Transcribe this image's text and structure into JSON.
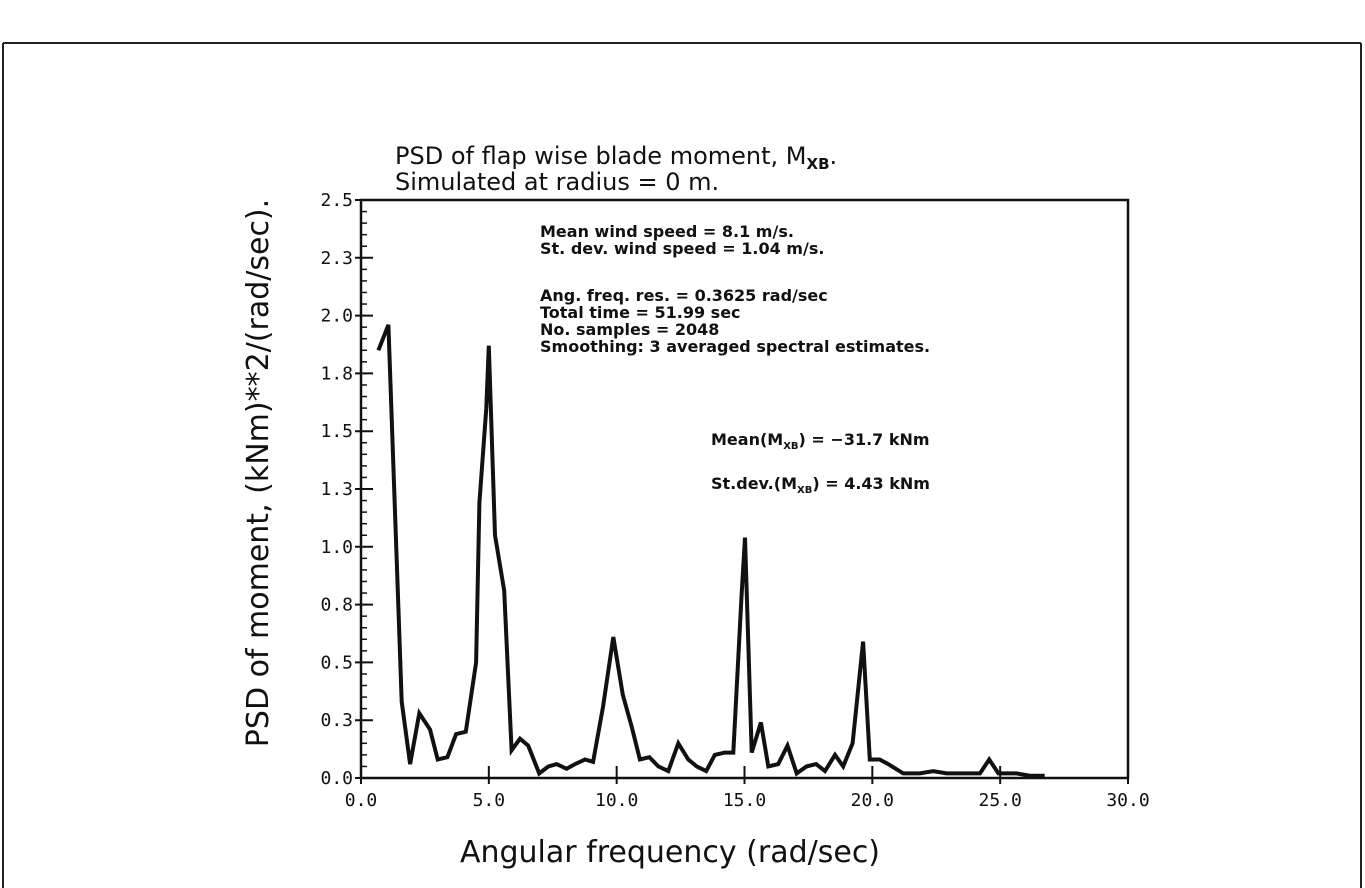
{
  "chart_data": {
    "type": "line",
    "title": [
      "PSD of flap wise blade moment, M",
      "Simulated at radius = 0 m."
    ],
    "title_subscript": "XB",
    "xlabel": "Angular frequency (rad/sec)",
    "ylabel": "PSD of moment, (kNm)**2/(rad/sec).",
    "xlim": [
      0,
      30
    ],
    "ylim": [
      0,
      2.5
    ],
    "xticks": [
      0,
      5,
      10,
      15,
      20,
      25,
      30
    ],
    "xtick_labels": [
      "0.0",
      "5.0",
      "10.0",
      "15.0",
      "20.0",
      "25.0",
      "30.0"
    ],
    "yticks": [
      0,
      0.25,
      0.5,
      0.75,
      1.0,
      1.25,
      1.5,
      1.75,
      2.0,
      2.25,
      2.5
    ],
    "ytick_labels": [
      "0.0",
      "0.3",
      "0.5",
      "0.8",
      "1.0",
      "1.3",
      "1.5",
      "1.8",
      "2.0",
      "2.3",
      "2.5"
    ],
    "grid": false,
    "annotations": [
      "Mean wind speed = 8.1 m/s.",
      "St. dev. wind speed = 1.04 m/s.",
      "Ang. freq. res. =  0.3625 rad/sec",
      "Total time = 51.99 sec",
      "No. samples = 2048",
      "Smoothing: 3 averaged spectral estimates."
    ],
    "stats": {
      "mean_prefix": "Mean(M",
      "mean_sub": "XB",
      "mean_suffix": ") = −31.7 kNm",
      "std_prefix": "St.dev.(M",
      "std_sub": "XB",
      "std_suffix": ") = 4.43 kNm"
    },
    "series": [
      {
        "name": "PSD",
        "color": "#111111",
        "x": [
          0.68,
          1.07,
          1.59,
          1.92,
          2.28,
          2.7,
          3.0,
          3.38,
          3.72,
          4.1,
          4.5,
          4.63,
          4.9,
          5.0,
          5.24,
          5.6,
          5.89,
          6.22,
          6.54,
          6.97,
          7.33,
          7.65,
          8.04,
          8.37,
          8.76,
          9.08,
          9.47,
          9.87,
          10.24,
          10.59,
          10.91,
          11.28,
          11.63,
          12.02,
          12.41,
          12.8,
          13.13,
          13.5,
          13.84,
          14.23,
          14.56,
          14.89,
          15.02,
          15.28,
          15.64,
          15.93,
          16.32,
          16.68,
          17.04,
          17.43,
          17.8,
          18.15,
          18.54,
          18.86,
          19.23,
          19.64,
          19.9,
          20.29,
          20.62,
          21.21,
          21.86,
          22.38,
          22.9,
          23.69,
          24.21,
          24.57,
          24.93,
          25.64,
          26.16,
          26.74
        ],
        "y": [
          1.85,
          1.96,
          0.33,
          0.06,
          0.28,
          0.21,
          0.08,
          0.09,
          0.19,
          0.2,
          0.5,
          1.19,
          1.6,
          1.87,
          1.05,
          0.81,
          0.12,
          0.17,
          0.14,
          0.02,
          0.05,
          0.06,
          0.04,
          0.06,
          0.08,
          0.07,
          0.31,
          0.61,
          0.36,
          0.22,
          0.08,
          0.09,
          0.05,
          0.03,
          0.15,
          0.08,
          0.05,
          0.03,
          0.1,
          0.11,
          0.11,
          0.8,
          1.04,
          0.11,
          0.24,
          0.05,
          0.06,
          0.14,
          0.02,
          0.05,
          0.06,
          0.03,
          0.1,
          0.05,
          0.15,
          0.59,
          0.08,
          0.08,
          0.06,
          0.02,
          0.02,
          0.03,
          0.02,
          0.02,
          0.02,
          0.08,
          0.02,
          0.02,
          0.01,
          0.01
        ]
      }
    ]
  }
}
